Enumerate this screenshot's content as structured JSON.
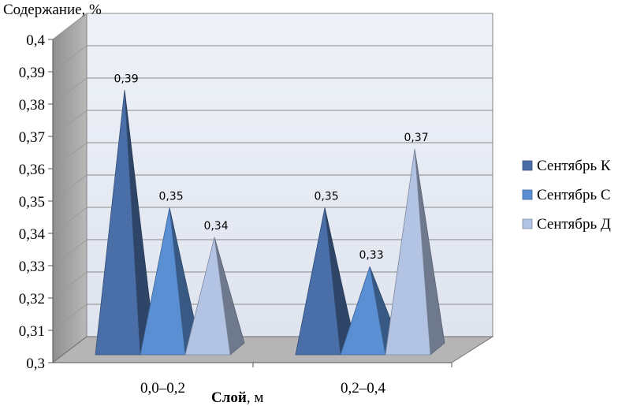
{
  "chart_data": {
    "type": "bar",
    "bar_shape": "pyramid",
    "three_d": true,
    "title": "",
    "ylabel": "Содержание, %",
    "xlabel_bold": "Слой",
    "xlabel_rest": ", м",
    "categories": [
      "0,0–0,2",
      "0,2–0,4"
    ],
    "series": [
      {
        "name": "Сентябрь К",
        "values": [
          0.39,
          0.35
        ],
        "labels": [
          "0,39",
          "0,35"
        ],
        "color": "#4a6fa8"
      },
      {
        "name": "Сентябрь С",
        "values": [
          0.35,
          0.33
        ],
        "labels": [
          "0,35",
          "0,33"
        ],
        "color": "#5a8fd4"
      },
      {
        "name": "Сентябрь Д",
        "values": [
          0.34,
          0.37
        ],
        "labels": [
          "0,34",
          "0,37"
        ],
        "color": "#b3c3e3"
      }
    ],
    "yticks": [
      "0,3",
      "0,31",
      "0,32",
      "0,33",
      "0,34",
      "0,35",
      "0,36",
      "0,37",
      "0,38",
      "0,39",
      "0,4"
    ],
    "ylim": [
      0.3,
      0.4
    ],
    "grid": true,
    "legend_position": "right"
  }
}
